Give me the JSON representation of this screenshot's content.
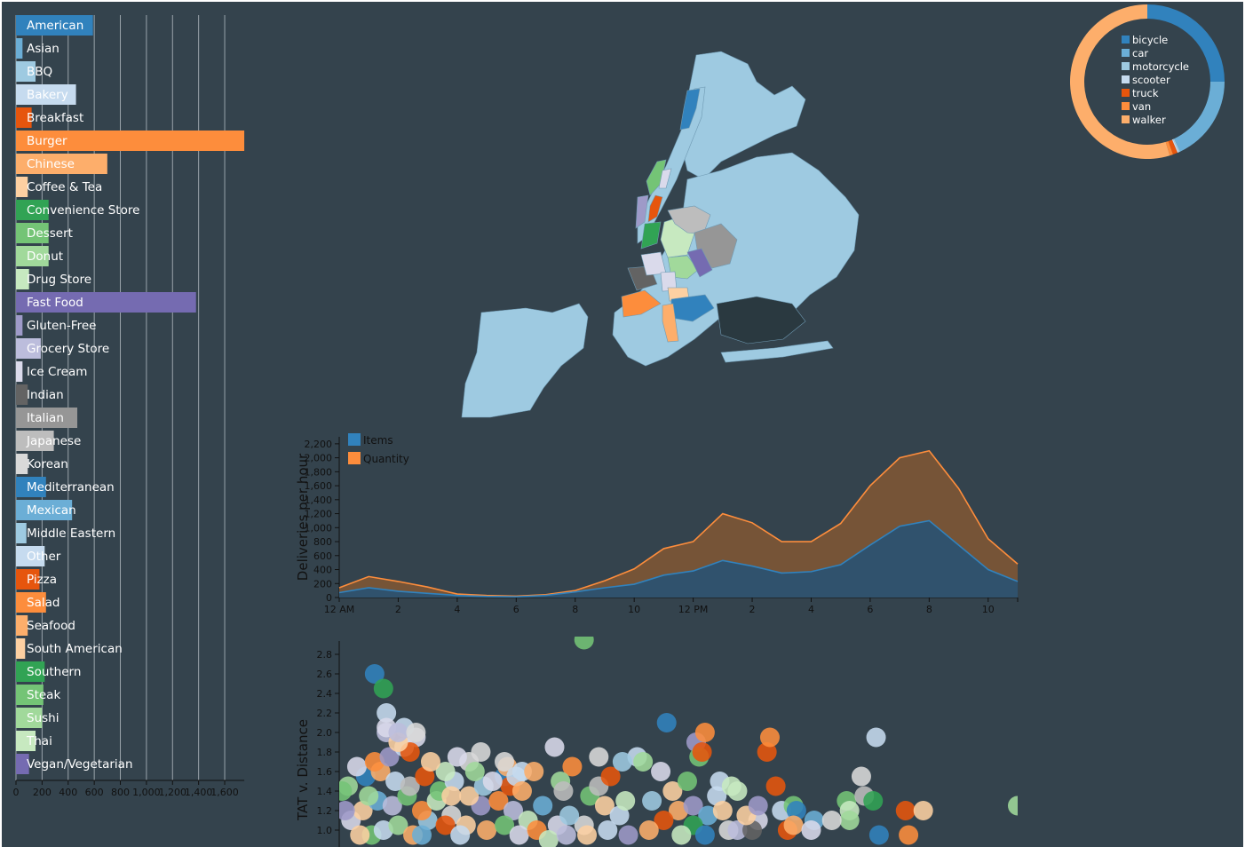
{
  "chart_data": [
    {
      "id": "cuisine-bar",
      "type": "bar",
      "orientation": "horizontal",
      "categories": [
        "American",
        "Asian",
        "BBQ",
        "Bakery",
        "Breakfast",
        "Burger",
        "Chinese",
        "Coffee & Tea",
        "Convenience Store",
        "Dessert",
        "Donut",
        "Drug Store",
        "Fast Food",
        "Gluten-Free",
        "Grocery Store",
        "Ice Cream",
        "Indian",
        "Italian",
        "Japanese",
        "Korean",
        "Mediterranean",
        "Mexican",
        "Middle Eastern",
        "Other",
        "Pizza",
        "Salad",
        "Seafood",
        "South American",
        "Southern",
        "Steak",
        "Sushi",
        "Thai",
        "Vegan/Vegetarian"
      ],
      "values": [
        590,
        50,
        150,
        460,
        120,
        1750,
        700,
        90,
        250,
        250,
        250,
        100,
        1380,
        50,
        190,
        50,
        90,
        470,
        290,
        90,
        230,
        430,
        80,
        220,
        180,
        230,
        90,
        70,
        220,
        210,
        200,
        150,
        100
      ],
      "colors": [
        "#3182bd",
        "#6baed6",
        "#9ecae1",
        "#c6dbef",
        "#e6550d",
        "#fd8d3c",
        "#fdae6b",
        "#fdd0a2",
        "#31a354",
        "#74c476",
        "#a1d99b",
        "#c7e9c0",
        "#756bb1",
        "#9e9ac8",
        "#bcbddc",
        "#dadaeb",
        "#636363",
        "#969696",
        "#bdbdbd",
        "#d9d9d9",
        "#3182bd",
        "#6baed6",
        "#9ecae1",
        "#c6dbef",
        "#e6550d",
        "#fd8d3c",
        "#fdae6b",
        "#fdd0a2",
        "#31a354",
        "#74c476",
        "#a1d99b",
        "#c7e9c0",
        "#756bb1"
      ],
      "x_ticks": [
        "0",
        "200",
        "400",
        "600",
        "800",
        "1,000",
        "1,200",
        "1,400",
        "1,600"
      ],
      "xlim": [
        0,
        1750
      ],
      "grid": true
    },
    {
      "id": "vehicle-donut",
      "type": "pie",
      "donut": true,
      "labels": [
        "bicycle",
        "car",
        "motorcycle",
        "scooter",
        "truck",
        "van",
        "walker"
      ],
      "values": [
        25,
        18,
        0.3,
        0.3,
        1,
        0.7,
        54.7
      ],
      "colors": [
        "#3182bd",
        "#6baed6",
        "#9ecae1",
        "#c6dbef",
        "#e6550d",
        "#fd8d3c",
        "#fdae6b"
      ],
      "legend": "inside"
    },
    {
      "id": "deliveries-area",
      "type": "area",
      "ylabel": "Deliveries per hour",
      "x": [
        0,
        1,
        2,
        3,
        4,
        5,
        6,
        7,
        8,
        9,
        10,
        11,
        12,
        13,
        14,
        15,
        16,
        17,
        18,
        19,
        20,
        21,
        22,
        23
      ],
      "x_tick_labels": [
        "12 AM",
        "2",
        "4",
        "6",
        "8",
        "10",
        "12 PM",
        "2",
        "4",
        "6",
        "8",
        "10"
      ],
      "y_ticks": [
        "0",
        "200",
        "400",
        "600",
        "800",
        "1,000",
        "1,200",
        "1,400",
        "1,600",
        "1,800",
        "2,000",
        "2,200"
      ],
      "ylim": [
        0,
        2300
      ],
      "series": [
        {
          "name": "Items",
          "color": "#3182bd",
          "values": [
            70,
            140,
            90,
            60,
            30,
            15,
            10,
            30,
            80,
            140,
            190,
            320,
            380,
            530,
            450,
            350,
            370,
            470,
            750,
            1020,
            1100,
            750,
            400,
            230
          ]
        },
        {
          "name": "Quantity",
          "color": "#fd8d3c",
          "values": [
            140,
            300,
            230,
            150,
            50,
            30,
            20,
            40,
            100,
            240,
            410,
            700,
            800,
            1200,
            1070,
            800,
            800,
            1060,
            1600,
            2000,
            2100,
            1560,
            840,
            480
          ]
        }
      ],
      "legend": "top-left"
    },
    {
      "id": "tat-scatter",
      "type": "scatter",
      "ylabel": "TAT v. Distance",
      "y_ticks": [
        "1.0",
        "1.2",
        "1.4",
        "1.6",
        "1.8",
        "2.0",
        "2.2",
        "2.4",
        "2.6",
        "2.8"
      ],
      "ylim": [
        0.85,
        2.95
      ],
      "xlim": [
        0,
        23
      ],
      "points": [
        [
          1.1,
          0.95,
          "#74c476"
        ],
        [
          1.5,
          1.0,
          "#c6dbef"
        ],
        [
          2.0,
          1.05,
          "#a1d99b"
        ],
        [
          2.5,
          0.95,
          "#fdae6b"
        ],
        [
          3.0,
          1.1,
          "#9ecae1"
        ],
        [
          0.4,
          1.1,
          "#dadaeb"
        ],
        [
          0.8,
          1.2,
          "#fdd0a2"
        ],
        [
          1.3,
          1.3,
          "#6baed6"
        ],
        [
          1.8,
          1.25,
          "#bcbddc"
        ],
        [
          2.3,
          1.35,
          "#74c476"
        ],
        [
          2.8,
          1.2,
          "#fd8d3c"
        ],
        [
          3.3,
          1.3,
          "#c7e9c0"
        ],
        [
          3.8,
          1.15,
          "#d9d9d9"
        ],
        [
          4.3,
          1.05,
          "#fdd0a2"
        ],
        [
          4.8,
          1.25,
          "#9e9ac8"
        ],
        [
          0.3,
          1.45,
          "#a1d99b"
        ],
        [
          0.9,
          1.55,
          "#3182bd"
        ],
        [
          1.4,
          1.6,
          "#fdae6b"
        ],
        [
          1.9,
          1.5,
          "#c6dbef"
        ],
        [
          2.4,
          1.45,
          "#bdbdbd"
        ],
        [
          2.9,
          1.55,
          "#e6550d"
        ],
        [
          3.4,
          1.4,
          "#74c476"
        ],
        [
          3.9,
          1.5,
          "#c6dbef"
        ],
        [
          4.4,
          1.35,
          "#fdd0a2"
        ],
        [
          4.9,
          1.45,
          "#9ecae1"
        ],
        [
          5.4,
          1.3,
          "#fd8d3c"
        ],
        [
          5.9,
          1.2,
          "#bcbddc"
        ],
        [
          6.4,
          1.1,
          "#c7e9c0"
        ],
        [
          6.9,
          1.25,
          "#6baed6"
        ],
        [
          7.4,
          1.05,
          "#dadaeb"
        ],
        [
          0.6,
          1.65,
          "#dadaeb"
        ],
        [
          1.2,
          1.7,
          "#fd8d3c"
        ],
        [
          1.7,
          1.75,
          "#9e9ac8"
        ],
        [
          2.2,
          1.85,
          "#c6dbef"
        ],
        [
          2.6,
          1.95,
          "#dadaeb"
        ],
        [
          2.2,
          2.05,
          "#c6dbef"
        ],
        [
          1.6,
          2.0,
          "#bcbddc"
        ],
        [
          2.4,
          1.8,
          "#e6550d"
        ],
        [
          2.0,
          1.9,
          "#fdd0a2"
        ],
        [
          1.0,
          1.35,
          "#a1d99b"
        ],
        [
          5.6,
          1.55,
          "#3182bd"
        ],
        [
          5.7,
          1.65,
          "#fdae6b"
        ],
        [
          6.2,
          1.6,
          "#c6dbef"
        ],
        [
          5.8,
          1.45,
          "#e6550d"
        ],
        [
          7.3,
          1.85,
          "#dadaeb"
        ],
        [
          7.9,
          1.65,
          "#fd8d3c"
        ],
        [
          7.5,
          1.5,
          "#a1d99b"
        ],
        [
          8.5,
          1.35,
          "#74c476"
        ],
        [
          9.0,
          1.25,
          "#fdd0a2"
        ],
        [
          9.5,
          1.15,
          "#c6dbef"
        ],
        [
          8.3,
          1.05,
          "#d9d9d9"
        ],
        [
          7.8,
          1.15,
          "#9ecae1"
        ],
        [
          8.8,
          1.45,
          "#bdbdbd"
        ],
        [
          9.2,
          1.55,
          "#e6550d"
        ],
        [
          9.7,
          1.3,
          "#c7e9c0"
        ],
        [
          10.1,
          1.75,
          "#c6dbef"
        ],
        [
          10.3,
          1.7,
          "#a1d99b"
        ],
        [
          10.9,
          1.6,
          "#dadaeb"
        ],
        [
          11.3,
          1.4,
          "#fdd0a2"
        ],
        [
          11.8,
          1.5,
          "#74c476"
        ],
        [
          11.5,
          1.2,
          "#fdae6b"
        ],
        [
          12.0,
          1.25,
          "#9e9ac8"
        ],
        [
          12.5,
          1.15,
          "#6baed6"
        ],
        [
          12.0,
          1.05,
          "#31a354"
        ],
        [
          12.8,
          1.35,
          "#c6dbef"
        ],
        [
          10.6,
          1.3,
          "#9ecae1"
        ],
        [
          11.0,
          1.1,
          "#e6550d"
        ],
        [
          11.6,
          0.95,
          "#c7e9c0"
        ],
        [
          12.4,
          0.95,
          "#3182bd"
        ],
        [
          13.2,
          1.0,
          "#d9d9d9"
        ],
        [
          11.1,
          2.1,
          "#3182bd"
        ],
        [
          12.1,
          1.9,
          "#9e9ac8"
        ],
        [
          12.2,
          1.75,
          "#74c476"
        ],
        [
          12.4,
          2.0,
          "#fd8d3c"
        ],
        [
          12.3,
          1.8,
          "#e6550d"
        ],
        [
          12.9,
          1.5,
          "#c6dbef"
        ],
        [
          13.3,
          1.45,
          "#c7e9c0"
        ],
        [
          13.0,
          1.2,
          "#fdd0a2"
        ],
        [
          13.5,
          1.0,
          "#bcbddc"
        ],
        [
          14.2,
          1.1,
          "#dadaeb"
        ],
        [
          14.0,
          1.0,
          "#636363"
        ],
        [
          15.0,
          1.2,
          "#c6dbef"
        ],
        [
          15.4,
          1.25,
          "#74c476"
        ],
        [
          15.5,
          1.2,
          "#3182bd"
        ],
        [
          15.2,
          1.0,
          "#e6550d"
        ],
        [
          15.4,
          1.05,
          "#fdae6b"
        ],
        [
          17.2,
          1.3,
          "#74c476"
        ],
        [
          17.3,
          1.2,
          "#c7e9c0"
        ],
        [
          17.3,
          1.1,
          "#a1d99b"
        ],
        [
          17.7,
          1.55,
          "#d9d9d9"
        ],
        [
          17.8,
          1.35,
          "#bdbdbd"
        ],
        [
          18.1,
          1.3,
          "#31a354"
        ],
        [
          18.2,
          1.95,
          "#c6dbef"
        ],
        [
          18.3,
          0.95,
          "#3182bd"
        ],
        [
          19.2,
          1.2,
          "#e6550d"
        ],
        [
          19.3,
          0.95,
          "#fd8d3c"
        ],
        [
          19.8,
          1.2,
          "#fdd0a2"
        ],
        [
          23.0,
          1.25,
          "#a1d99b"
        ],
        [
          8.3,
          2.95,
          "#74c476"
        ],
        [
          1.2,
          2.6,
          "#3182bd"
        ],
        [
          1.5,
          2.45,
          "#31a354"
        ],
        [
          1.6,
          2.2,
          "#c6dbef"
        ],
        [
          1.6,
          2.05,
          "#dadaeb"
        ],
        [
          2.0,
          2.0,
          "#bcbddc"
        ],
        [
          2.6,
          2.0,
          "#d9d9d9"
        ],
        [
          3.6,
          1.6,
          "#c7e9c0"
        ],
        [
          4.4,
          1.7,
          "#d9d9d9"
        ],
        [
          4.8,
          1.8,
          "#d9d9d9"
        ],
        [
          5.6,
          1.7,
          "#d9d9d9"
        ],
        [
          6.0,
          1.55,
          "#c6dbef"
        ],
        [
          6.6,
          1.6,
          "#fdae6b"
        ],
        [
          6.2,
          1.4,
          "#fdae6b"
        ],
        [
          4.0,
          1.75,
          "#dadaeb"
        ],
        [
          3.1,
          1.7,
          "#fdd0a2"
        ],
        [
          4.6,
          1.6,
          "#a1d99b"
        ],
        [
          7.6,
          1.4,
          "#bdbdbd"
        ],
        [
          8.8,
          1.75,
          "#d9d9d9"
        ],
        [
          9.6,
          1.7,
          "#9ecae1"
        ],
        [
          14.8,
          1.45,
          "#e6550d"
        ],
        [
          14.5,
          1.8,
          "#e6550d"
        ],
        [
          14.6,
          1.95,
          "#fd8d3c"
        ],
        [
          13.5,
          1.4,
          "#c7e9c0"
        ],
        [
          13.8,
          1.15,
          "#fdd0a2"
        ],
        [
          14.2,
          1.25,
          "#9e9ac8"
        ],
        [
          16.1,
          1.1,
          "#6baed6"
        ],
        [
          16.7,
          1.1,
          "#d9d9d9"
        ],
        [
          16.0,
          1.0,
          "#dadaeb"
        ],
        [
          2.8,
          0.95,
          "#6baed6"
        ],
        [
          3.6,
          1.05,
          "#e6550d"
        ],
        [
          4.1,
          0.95,
          "#c6dbef"
        ],
        [
          5.0,
          1.0,
          "#fdae6b"
        ],
        [
          5.6,
          1.05,
          "#74c476"
        ],
        [
          6.1,
          0.95,
          "#dadaeb"
        ],
        [
          6.7,
          1.0,
          "#fd8d3c"
        ],
        [
          7.1,
          0.9,
          "#c7e9c0"
        ],
        [
          7.7,
          0.95,
          "#bcbddc"
        ],
        [
          8.4,
          0.95,
          "#fdd0a2"
        ],
        [
          9.1,
          1.0,
          "#c6dbef"
        ],
        [
          9.8,
          0.95,
          "#9e9ac8"
        ],
        [
          10.5,
          1.0,
          "#fdae6b"
        ],
        [
          0.1,
          1.4,
          "#74c476"
        ],
        [
          0.2,
          1.2,
          "#9e9ac8"
        ],
        [
          0.7,
          0.95,
          "#fdd0a2"
        ],
        [
          3.8,
          1.35,
          "#fdd0a2"
        ],
        [
          5.2,
          1.5,
          "#dadaeb"
        ]
      ]
    }
  ],
  "map": {
    "land_color": "#9ecae1",
    "water_color": "#2a3940",
    "highlight_colors": [
      "#3182bd",
      "#74c476",
      "#e6550d",
      "#31a354",
      "#9e9ac8",
      "#dadaeb",
      "#c7e9c0",
      "#a1d99b",
      "#bdbdbd",
      "#969696",
      "#756bb1",
      "#636363",
      "#fdd0a2",
      "#fd8d3c",
      "#fdae6b",
      "#d9d9d9"
    ]
  }
}
